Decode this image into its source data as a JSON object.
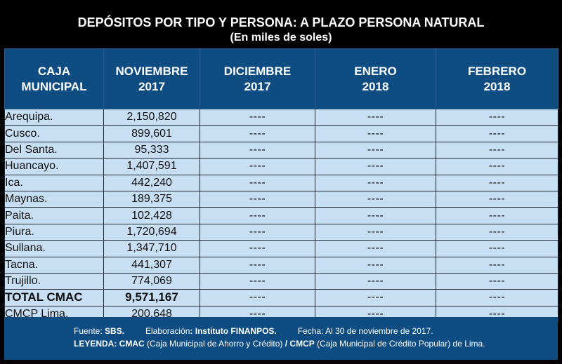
{
  "title": {
    "line1": "DEPÓSITOS POR TIPO Y PERSONA: A PLAZO PERSONA NATURAL",
    "line2": "(En miles de soles)"
  },
  "table": {
    "headers": [
      {
        "line1": "CAJA",
        "line2": "MUNICIPAL"
      },
      {
        "line1": "NOVIEMBRE",
        "line2": "2017"
      },
      {
        "line1": "DICIEMBRE",
        "line2": "2017"
      },
      {
        "line1": "ENERO",
        "line2": "2018"
      },
      {
        "line1": "FEBRERO",
        "line2": "2018"
      }
    ],
    "rows": [
      [
        "Arequipa.",
        "2,150,820",
        "----",
        "----",
        "----"
      ],
      [
        "Cusco.",
        "899,601",
        "----",
        "----",
        "----"
      ],
      [
        "Del Santa.",
        "95,333",
        "----",
        "----",
        "----"
      ],
      [
        "Huancayo.",
        "1,407,591",
        "----",
        "----",
        "----"
      ],
      [
        "Ica.",
        "442,240",
        "----",
        "----",
        "----"
      ],
      [
        "Maynas.",
        "189,375",
        "----",
        "----",
        "----"
      ],
      [
        "Paita.",
        "102,428",
        "----",
        "----",
        "----"
      ],
      [
        "Piura.",
        "1,720,694",
        "----",
        "----",
        "----"
      ],
      [
        "Sullana.",
        "1,347,710",
        "----",
        "----",
        "----"
      ],
      [
        "Tacna.",
        "441,307",
        "----",
        "----",
        "----"
      ],
      [
        "Trujillo.",
        "774,069",
        "----",
        "----",
        "----"
      ],
      [
        "TOTAL CMAC",
        "9,571,167",
        "----",
        "----",
        "----"
      ],
      [
        "CMCP Lima.",
        "200,648",
        "----",
        "----",
        "----"
      ]
    ]
  },
  "footer": {
    "fuente_label": "Fuente: ",
    "fuente_value": "SBS.",
    "elaboracion_label": "Elaboración",
    "elaboracion_value": ": Instituto FINANPOS.",
    "fecha": "Fecha: Al 30 de noviembre de 2017.",
    "leyenda_label": "LEYENDA: CMAC",
    "leyenda_cmac": " (Caja Municipal de Ahorro y Crédito) ",
    "leyenda_sep": "/ CMCP",
    "leyenda_cmcp": " (Caja Municipal de Crédito Popular) de Lima."
  },
  "colors": {
    "background": "#000000",
    "header_blue": "#0f4c82",
    "row_light_blue": "#c7def3",
    "text_white": "#ffffff"
  }
}
